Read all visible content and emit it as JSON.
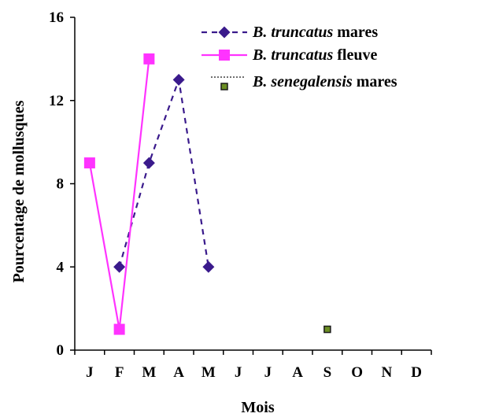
{
  "chart_data": {
    "type": "line",
    "xlabel": "Mois",
    "ylabel": "Pourcentage de mollusques",
    "categories": [
      "J",
      "F",
      "M",
      "A",
      "M",
      "J",
      "J",
      "A",
      "S",
      "O",
      "N",
      "D"
    ],
    "ylim": [
      0,
      16
    ],
    "yticks": [
      "0",
      "4",
      "8",
      "12",
      "16"
    ],
    "grid": false,
    "legend_position": "top-right",
    "series": [
      {
        "name": "B. truncatus mares",
        "name_italic": "B. truncatus",
        "name_rest": " mares",
        "color": "#3a1a8c",
        "line_style": "dashed",
        "marker": "diamond",
        "values": [
          null,
          4,
          9,
          13,
          4,
          null,
          null,
          null,
          null,
          null,
          null,
          null
        ]
      },
      {
        "name": "B. truncatus fleuve",
        "name_italic": "B. truncatus",
        "name_rest": " fleuve",
        "color": "#ff33ff",
        "line_style": "solid",
        "marker": "square",
        "values": [
          9,
          1,
          14,
          null,
          null,
          null,
          null,
          null,
          null,
          null,
          null,
          null
        ]
      },
      {
        "name": "B. senegalensis mares",
        "name_italic": "B. senegalensis",
        "name_rest": " mares",
        "color": "#1a1a1a",
        "marker_fill": "#6b8e23",
        "line_style": "dotted",
        "marker": "square-small",
        "values": [
          null,
          null,
          null,
          null,
          null,
          null,
          null,
          null,
          1,
          null,
          null,
          null
        ]
      }
    ]
  }
}
